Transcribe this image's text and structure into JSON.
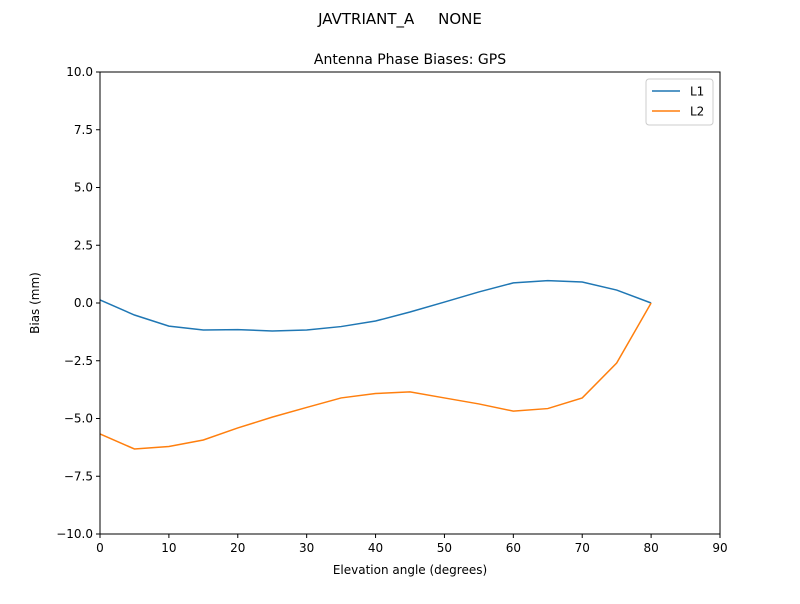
{
  "suptitle": "JAVTRIANT_A     NONE",
  "chart_data": {
    "type": "line",
    "title": "Antenna Phase Biases: GPS",
    "xlabel": "Elevation angle (degrees)",
    "ylabel": "Bias (mm)",
    "xlim": [
      0,
      90
    ],
    "ylim": [
      -10,
      10
    ],
    "xticks": [
      0,
      10,
      20,
      30,
      40,
      50,
      60,
      70,
      80,
      90
    ],
    "yticks": [
      -10.0,
      -7.5,
      -5.0,
      -2.5,
      0.0,
      2.5,
      5.0,
      7.5,
      10.0
    ],
    "xtick_labels": [
      "0",
      "10",
      "20",
      "30",
      "40",
      "50",
      "60",
      "70",
      "80",
      "90"
    ],
    "ytick_labels": [
      "−10.0",
      "−7.5",
      "−5.0",
      "−2.5",
      "0.0",
      "2.5",
      "5.0",
      "7.5",
      "10.0"
    ],
    "grid": false,
    "legend_position": "top-right",
    "x": [
      0,
      5,
      10,
      15,
      20,
      25,
      30,
      35,
      40,
      45,
      50,
      55,
      60,
      65,
      70,
      75,
      80
    ],
    "series": [
      {
        "name": "L1",
        "color": "#1f77b4",
        "values": [
          0.13,
          -0.52,
          -1.0,
          -1.17,
          -1.15,
          -1.21,
          -1.17,
          -1.02,
          -0.78,
          -0.39,
          0.04,
          0.48,
          0.87,
          0.97,
          0.91,
          0.56,
          0.0
        ]
      },
      {
        "name": "L2",
        "color": "#ff7f0e",
        "values": [
          -5.67,
          -6.32,
          -6.21,
          -5.93,
          -5.41,
          -4.94,
          -4.52,
          -4.11,
          -3.92,
          -3.85,
          -4.11,
          -4.37,
          -4.68,
          -4.57,
          -4.11,
          -2.6,
          0.0
        ]
      }
    ]
  }
}
